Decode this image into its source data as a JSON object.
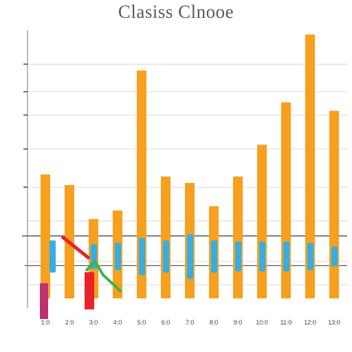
{
  "chart_data": {
    "type": "bar",
    "title": "Clasiss Clnooe",
    "categories": [
      "1:0",
      "2:0",
      "3:0",
      "4:0",
      "5:0",
      "6:0",
      "7:0",
      "8:0",
      "9:0",
      "10:0",
      "11:0",
      "12:0",
      "13:0"
    ],
    "series": [
      {
        "color": "#f7a01e",
        "values": [
          62,
          57,
          41,
          45,
          111,
          61,
          58,
          47,
          61,
          76,
          96,
          128,
          92
        ]
      },
      {
        "color": "#33aee6",
        "values": [
          13,
          null,
          10,
          11,
          15,
          13,
          18,
          13,
          12,
          12,
          12,
          11,
          8
        ]
      }
    ],
    "ylim": [
      -1,
      130
    ],
    "grid": true,
    "colors": {
      "title": "#5a5a5a",
      "grid": "#d9d9d9",
      "axis": "#333333"
    }
  }
}
